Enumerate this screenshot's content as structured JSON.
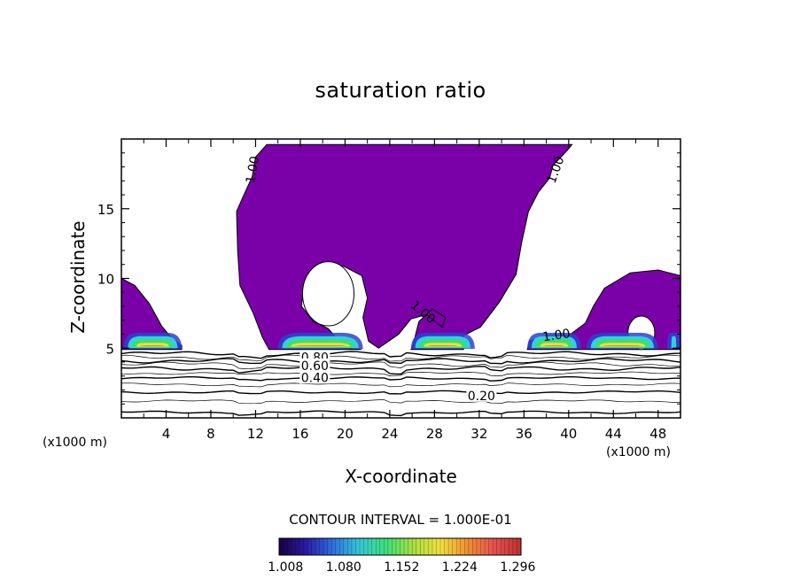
{
  "chart_data": {
    "type": "heatmap",
    "title": "saturation ratio",
    "xlabel": "X-coordinate",
    "ylabel": "Z-coordinate",
    "x_unit_left": "(x1000 m)",
    "x_unit_right": "(x1000 m)",
    "xlim": [
      0,
      50
    ],
    "ylim": [
      0,
      20
    ],
    "xticks": [
      4,
      8,
      12,
      16,
      20,
      24,
      28,
      32,
      36,
      40,
      44,
      48
    ],
    "yticks": [
      5,
      10,
      15
    ],
    "contour_interval_text": "CONTOUR INTERVAL = 1.000E-01",
    "colorbar": {
      "tick_labels": [
        "1.008",
        "1.080",
        "1.152",
        "1.224",
        "1.296"
      ],
      "range": [
        1.0,
        1.3
      ],
      "colors": [
        "#1a0040",
        "#2a1aa8",
        "#2f6fe0",
        "#35c8d8",
        "#3de07a",
        "#a8e040",
        "#f0e040",
        "#f09030",
        "#e85050",
        "#c03030"
      ]
    },
    "supersaturated_region_color": "#7a00a8",
    "core_colors": [
      "#3040d0",
      "#30d0e0",
      "#40e060",
      "#e8e040",
      "#f06040",
      "#f07060"
    ],
    "contour_labels": [
      {
        "text": "1.00",
        "x": 11.7,
        "z": 17.8,
        "rotate": -80
      },
      {
        "text": "1.00",
        "x": 38.8,
        "z": 17.8,
        "rotate": -70
      },
      {
        "text": "1.00",
        "x": 27.0,
        "z": 7.6,
        "rotate": 40
      },
      {
        "text": "1.00",
        "x": 38.9,
        "z": 5.95,
        "rotate": -8
      },
      {
        "text": "0.80",
        "x": 17.3,
        "z": 4.35,
        "rotate": 0
      },
      {
        "text": "0.60",
        "x": 17.3,
        "z": 3.75,
        "rotate": 0
      },
      {
        "text": "0.40",
        "x": 17.3,
        "z": 2.9,
        "rotate": 0
      },
      {
        "text": "0.20",
        "x": 32.2,
        "z": 1.6,
        "rotate": 0
      }
    ],
    "cloud_cores": [
      {
        "x0": 0.2,
        "x1": 5.4
      },
      {
        "x0": 14.0,
        "x1": 21.6
      },
      {
        "x0": 25.9,
        "x1": 31.6
      },
      {
        "x0": 36.3,
        "x1": 41.1
      },
      {
        "x0": 41.6,
        "x1": 48.0
      },
      {
        "x0": 48.8,
        "x1": 50.0
      }
    ],
    "subsaturated_contours": [
      4.6,
      4.35,
      4.1,
      3.85,
      3.55,
      3.2,
      2.85,
      2.4,
      1.85,
      1.2,
      0.4
    ]
  }
}
